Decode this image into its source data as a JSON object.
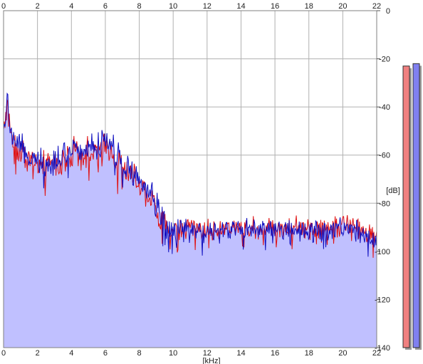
{
  "chart_data": {
    "type": "area",
    "xlabel": "[kHz]",
    "ylabel": "[dB]",
    "xlim": [
      0,
      22
    ],
    "ylim": [
      -140,
      0
    ],
    "x_ticks": [
      0,
      2,
      4,
      6,
      8,
      10,
      12,
      14,
      16,
      18,
      20,
      22
    ],
    "y_ticks": [
      0,
      -20,
      -40,
      -60,
      -80,
      -100,
      -120,
      -140
    ],
    "grid": true,
    "series": [
      {
        "color": "#e01010",
        "x": [
          0,
          0.2,
          0.5,
          1,
          1.5,
          2,
          2.5,
          3,
          3.5,
          4,
          4.5,
          5,
          5.5,
          6,
          6.5,
          7,
          7.5,
          8,
          8.5,
          9,
          9.5,
          10,
          11,
          12,
          13,
          14,
          15,
          16,
          17,
          18,
          19,
          20,
          21,
          22
        ],
        "values": [
          -48,
          -40,
          -53,
          -58,
          -62,
          -64,
          -65,
          -64,
          -62,
          -58,
          -60,
          -58,
          -59,
          -55,
          -60,
          -65,
          -68,
          -72,
          -76,
          -82,
          -89,
          -91,
          -90,
          -91,
          -90,
          -90,
          -90,
          -90,
          -90,
          -90,
          -90,
          -89,
          -90,
          -93
        ]
      },
      {
        "color": "#1010c0",
        "x": [
          0,
          0.2,
          0.5,
          1,
          1.5,
          2,
          2.5,
          3,
          3.5,
          4,
          4.5,
          5,
          5.5,
          6,
          6.5,
          7,
          7.5,
          8,
          8.5,
          9,
          9.5,
          10,
          11,
          12,
          13,
          14,
          15,
          16,
          17,
          18,
          19,
          20,
          21,
          22
        ],
        "values": [
          -46,
          -38,
          -51,
          -56,
          -60,
          -62,
          -63,
          -62,
          -60,
          -56,
          -58,
          -56,
          -57,
          -53,
          -58,
          -63,
          -67,
          -71,
          -75,
          -81,
          -89,
          -92,
          -91,
          -92,
          -91,
          -91,
          -91,
          -91,
          -91,
          -91,
          -91,
          -90,
          -92,
          -95
        ]
      }
    ],
    "area_fill": "#c0c0ff",
    "level_meters": [
      {
        "color": "#f08080",
        "value": -23
      },
      {
        "color": "#8080f0",
        "value": -22
      }
    ]
  }
}
